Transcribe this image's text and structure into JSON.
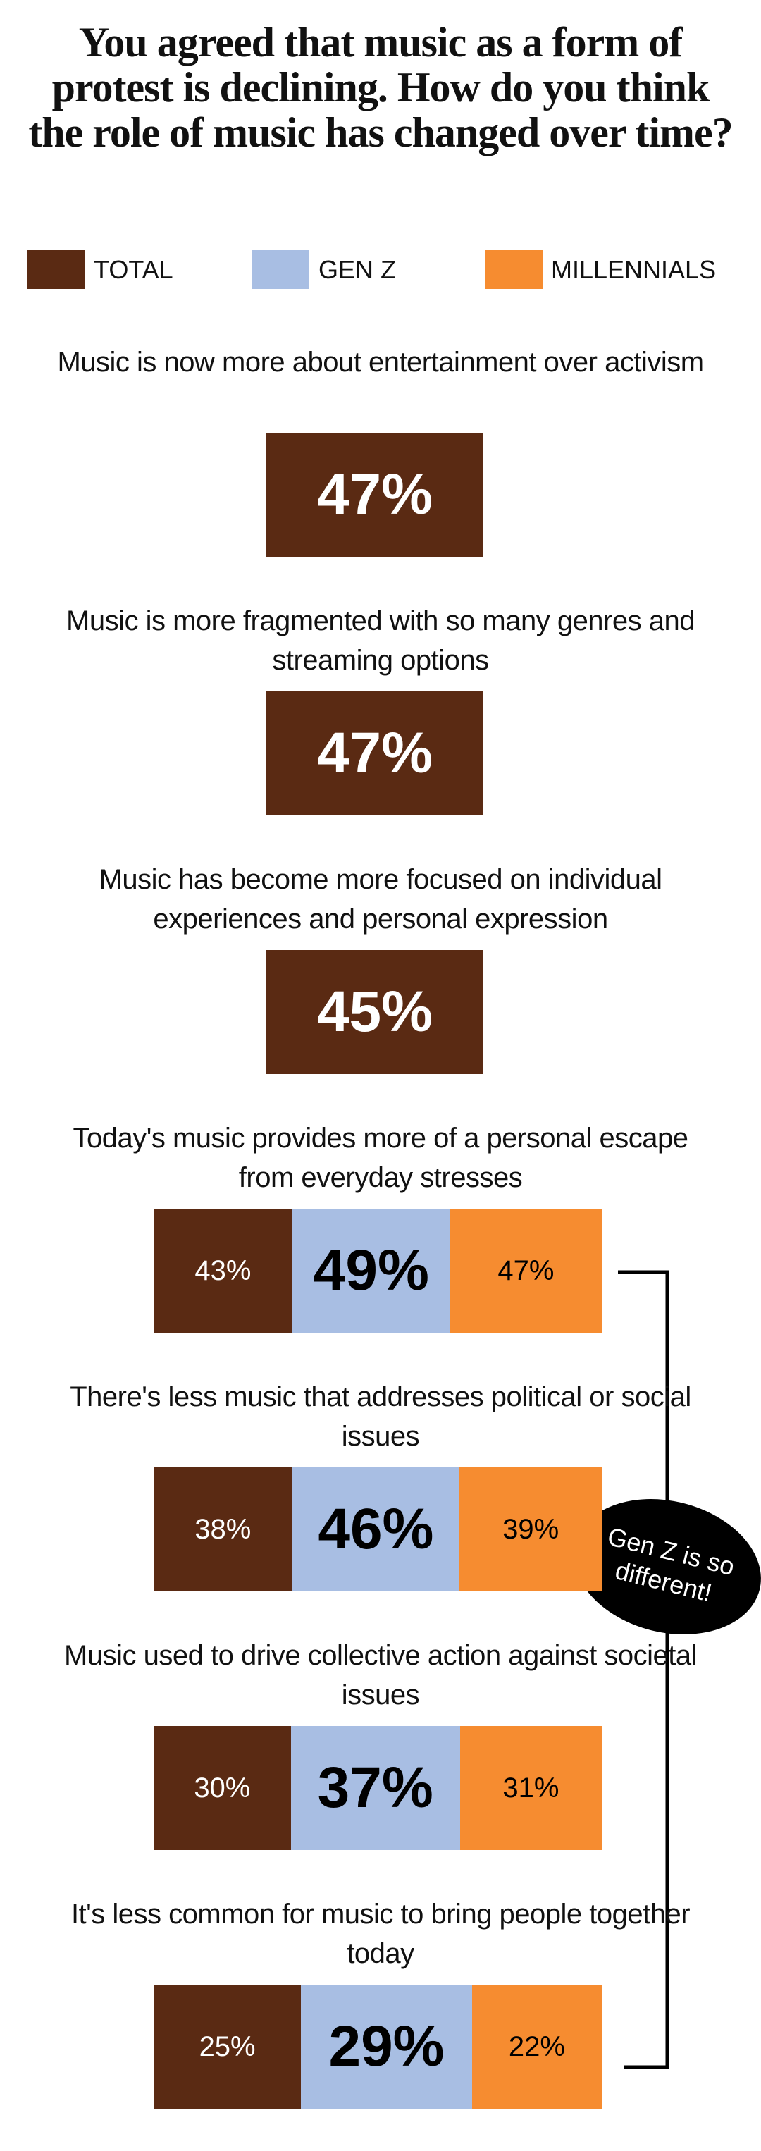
{
  "chart_data": {
    "type": "bar",
    "title": "You agreed that music as a form of protest is declining. How do you think the role of music has changed over time?",
    "categories": [
      "Music is now more about entertainment over activism",
      "Music is more fragmented with so many genres and streaming options",
      "Music has become more focused on individual experiences and personal expression",
      "Today's music provides more of a personal escape from everyday stresses",
      "There's less music that addresses political or social issues",
      "Music used to drive collective action against societal issues",
      "It's less common for music to bring people together today"
    ],
    "series": [
      {
        "name": "TOTAL",
        "color": "#5a2a13",
        "values": [
          47,
          47,
          45,
          43,
          38,
          30,
          25
        ],
        "value_labels": [
          "47%",
          "47%",
          "45%",
          "43%",
          "38%",
          "30%",
          "25%"
        ]
      },
      {
        "name": "GEN Z",
        "color": "#a8bee3",
        "values": [
          null,
          null,
          null,
          49,
          46,
          37,
          29
        ],
        "value_labels": [
          null,
          null,
          null,
          "49%",
          "46%",
          "37%",
          "29%"
        ]
      },
      {
        "name": "MILLENNIALS",
        "color": "#f68c30",
        "values": [
          null,
          null,
          null,
          47,
          39,
          31,
          22
        ],
        "value_labels": [
          null,
          null,
          null,
          "47%",
          "39%",
          "31%",
          "22%"
        ]
      }
    ],
    "annotation": "Gen Z is so different!"
  }
}
